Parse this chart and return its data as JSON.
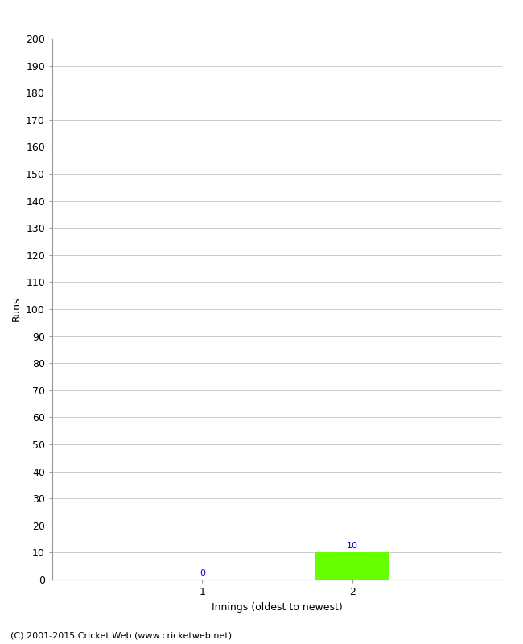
{
  "xlabel": "Innings (oldest to newest)",
  "ylabel": "Runs",
  "categories": [
    1,
    2
  ],
  "values": [
    0,
    10
  ],
  "bar_colors": [
    "#66ff00",
    "#66ff00"
  ],
  "value_labels": [
    "0",
    "10"
  ],
  "ylim": [
    0,
    200
  ],
  "yticks": [
    0,
    10,
    20,
    30,
    40,
    50,
    60,
    70,
    80,
    90,
    100,
    110,
    120,
    130,
    140,
    150,
    160,
    170,
    180,
    190,
    200
  ],
  "background_color": "#ffffff",
  "footer": "(C) 2001-2015 Cricket Web (www.cricketweb.net)",
  "label_color": "#0000cc",
  "bar_width": 0.5,
  "xlim": [
    0.0,
    3.0
  ]
}
